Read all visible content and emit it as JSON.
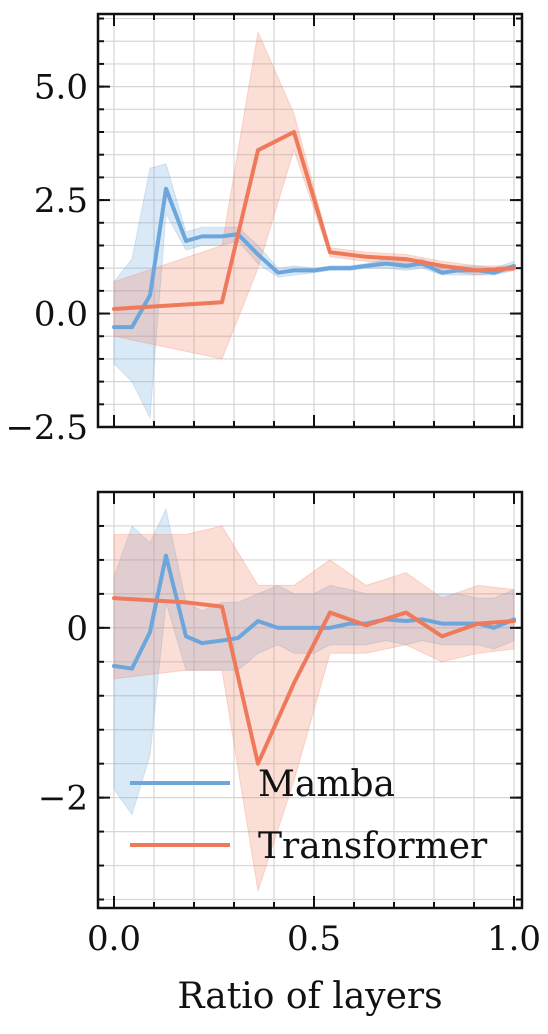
{
  "colors": {
    "mamba": "#6ca6dc",
    "transformer": "#ef7a5b",
    "grid": "#d6d6d6",
    "axis": "#111111"
  },
  "xlabel": "Ratio of layers",
  "legend": {
    "placement": "lower-right",
    "entries": [
      "Mamba",
      "Transformer"
    ]
  },
  "chart_data": [
    {
      "type": "line",
      "xlim": [
        -0.04,
        1.02
      ],
      "ylim": [
        -2.5,
        6.6
      ],
      "grid": true,
      "xticks": [
        0.0,
        0.5,
        1.0
      ],
      "xtick_labels": [
        "",
        "",
        ""
      ],
      "yticks": [
        -2.5,
        0.0,
        2.5,
        5.0
      ],
      "ytick_labels": [
        "−2.5",
        "0.0",
        "2.5",
        "5.0"
      ],
      "series": [
        {
          "name": "Mamba",
          "x": [
            0.0,
            0.045,
            0.09,
            0.13,
            0.18,
            0.22,
            0.27,
            0.31,
            0.36,
            0.41,
            0.45,
            0.5,
            0.54,
            0.59,
            0.63,
            0.68,
            0.73,
            0.77,
            0.82,
            0.86,
            0.91,
            0.95,
            1.0
          ],
          "y": [
            -0.3,
            -0.3,
            0.4,
            2.75,
            1.6,
            1.7,
            1.7,
            1.75,
            1.3,
            0.9,
            0.95,
            0.95,
            1.0,
            1.0,
            1.05,
            1.1,
            1.05,
            1.1,
            0.9,
            0.95,
            0.95,
            0.9,
            1.05
          ],
          "lower": [
            -1.1,
            -1.5,
            -2.3,
            2.2,
            1.4,
            1.5,
            1.5,
            1.6,
            1.1,
            0.8,
            0.85,
            0.9,
            0.95,
            0.95,
            1.0,
            1.0,
            0.95,
            1.0,
            0.85,
            0.85,
            0.85,
            0.85,
            0.95
          ],
          "upper": [
            0.7,
            1.2,
            3.2,
            3.3,
            1.8,
            1.9,
            1.9,
            1.9,
            1.5,
            1.0,
            1.05,
            1.0,
            1.05,
            1.05,
            1.1,
            1.2,
            1.15,
            1.2,
            1.0,
            1.05,
            1.05,
            1.0,
            1.15
          ]
        },
        {
          "name": "Transformer",
          "x": [
            0.0,
            0.27,
            0.36,
            0.45,
            0.54,
            0.63,
            0.73,
            0.82,
            0.91,
            1.0
          ],
          "y": [
            0.1,
            0.25,
            3.6,
            4.0,
            1.35,
            1.25,
            1.2,
            1.05,
            0.95,
            1.0
          ],
          "lower": [
            -0.5,
            -1.0,
            1.0,
            3.6,
            1.25,
            1.15,
            1.1,
            0.95,
            0.85,
            0.95
          ],
          "upper": [
            0.7,
            1.5,
            6.2,
            4.4,
            1.45,
            1.35,
            1.3,
            1.15,
            1.05,
            1.05
          ]
        }
      ]
    },
    {
      "type": "line",
      "xlim": [
        -0.04,
        1.02
      ],
      "ylim": [
        -3.3,
        1.6
      ],
      "grid": true,
      "xticks": [
        0.0,
        0.5,
        1.0
      ],
      "xtick_labels": [
        "0.0",
        "0.5",
        "1.0"
      ],
      "yticks": [
        -2,
        0
      ],
      "ytick_labels": [
        "−2",
        "0"
      ],
      "series": [
        {
          "name": "Mamba",
          "x": [
            0.0,
            0.045,
            0.09,
            0.13,
            0.18,
            0.22,
            0.27,
            0.31,
            0.36,
            0.41,
            0.45,
            0.5,
            0.54,
            0.59,
            0.63,
            0.68,
            0.73,
            0.77,
            0.82,
            0.86,
            0.91,
            0.95,
            1.0
          ],
          "y": [
            -0.45,
            -0.48,
            -0.05,
            0.85,
            -0.1,
            -0.18,
            -0.15,
            -0.12,
            0.08,
            0.0,
            0.0,
            0.0,
            0.0,
            0.05,
            0.05,
            0.1,
            0.08,
            0.1,
            0.05,
            0.05,
            0.05,
            0.0,
            0.1
          ],
          "lower": [
            -1.9,
            -2.2,
            -1.5,
            0.3,
            -0.5,
            -0.5,
            -0.5,
            -0.5,
            -0.3,
            -0.2,
            -0.3,
            -0.3,
            -0.2,
            -0.2,
            -0.2,
            -0.15,
            -0.2,
            -0.15,
            -0.2,
            -0.2,
            -0.2,
            -0.25,
            -0.15
          ],
          "upper": [
            0.6,
            1.2,
            1.0,
            1.4,
            0.3,
            0.2,
            0.3,
            0.3,
            0.4,
            0.5,
            0.4,
            0.4,
            0.5,
            0.45,
            0.4,
            0.4,
            0.4,
            0.4,
            0.4,
            0.4,
            0.35,
            0.35,
            0.45
          ]
        },
        {
          "name": "Transformer",
          "x": [
            0.0,
            0.18,
            0.27,
            0.36,
            0.45,
            0.54,
            0.63,
            0.73,
            0.82,
            0.91,
            1.0
          ],
          "y": [
            0.35,
            0.3,
            0.25,
            -1.6,
            -0.65,
            0.18,
            0.03,
            0.18,
            -0.1,
            0.05,
            0.08
          ],
          "lower": [
            -0.6,
            -0.5,
            -0.5,
            -3.1,
            -1.8,
            -0.3,
            -0.3,
            -0.2,
            -0.4,
            -0.3,
            -0.25
          ],
          "upper": [
            1.1,
            1.1,
            1.2,
            0.5,
            0.5,
            0.8,
            0.5,
            0.65,
            0.35,
            0.5,
            0.45
          ]
        }
      ]
    }
  ]
}
